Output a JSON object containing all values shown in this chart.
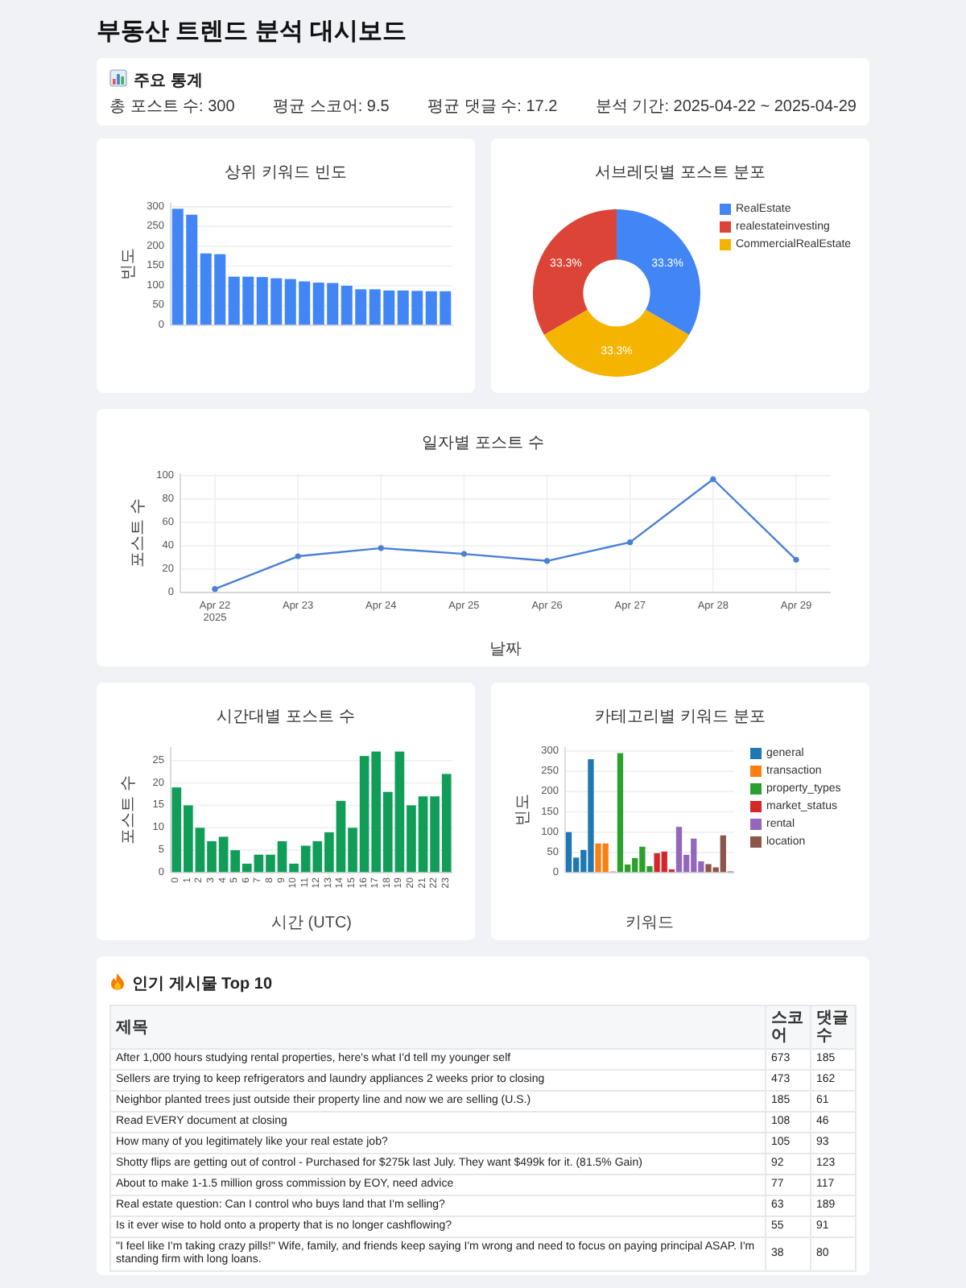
{
  "chart_data": [
    {
      "type": "other",
      "title": "부동산 트렌드 분석 대시보드"
    },
    {
      "type": "other",
      "title": "주요 통계",
      "annotations": [
        "총 포스트 수: 300",
        "평균 스코어: 9.5",
        "평균 댓글 수: 17.2",
        "분석 기간: 2025-04-22 ~ 2025-04-29"
      ]
    },
    {
      "type": "bar",
      "title": "상위 키워드 빈도",
      "ylabel": "빈도",
      "categories": [
        null,
        null,
        null,
        null,
        null,
        null,
        null,
        null,
        null,
        null,
        null,
        null,
        null,
        null,
        null,
        null,
        null,
        null,
        null,
        null
      ],
      "values": [
        295,
        280,
        182,
        180,
        123,
        123,
        122,
        119,
        117,
        111,
        108,
        107,
        100,
        91,
        91,
        88,
        88,
        87,
        86,
        86
      ],
      "color": "#4285f4",
      "ylim": [
        0,
        310
      ],
      "yticks": [
        0,
        50,
        100,
        150,
        200,
        250,
        300
      ],
      "grid": "y"
    },
    {
      "type": "donut",
      "title": "서브레딧별 포스트 분포",
      "categories": [
        "RealEstate",
        "realestateinvesting",
        "CommercialRealEstate"
      ],
      "values": [
        33.3,
        33.3,
        33.3
      ],
      "colors": [
        "#4285f4",
        "#db4437",
        "#f4b400"
      ],
      "value_labels": [
        "33.3%",
        "33.3%",
        "33.3%"
      ],
      "legend": "top right"
    },
    {
      "type": "line",
      "title": "일자별 포스트 수",
      "xlabel": "날짜",
      "ylabel": "포스트 수",
      "x": [
        "2025-04-22",
        "2025-04-23",
        "2025-04-24",
        "2025-04-25",
        "2025-04-26",
        "2025-04-27",
        "2025-04-28",
        "2025-04-29"
      ],
      "values": [
        3,
        31,
        38,
        33,
        27,
        43,
        97,
        28
      ],
      "color": "#4a7fd4",
      "xlim": [
        "2025-04-21T14:00",
        "2025-04-29T10:00"
      ],
      "xticks": [
        {
          "value": "2025-04-22",
          "label": "Apr 22\n2025"
        },
        {
          "value": "2025-04-23",
          "label": "Apr 23"
        },
        {
          "value": "2025-04-24",
          "label": "Apr 24"
        },
        {
          "value": "2025-04-25",
          "label": "Apr 25"
        },
        {
          "value": "2025-04-26",
          "label": "Apr 26"
        },
        {
          "value": "2025-04-27",
          "label": "Apr 27"
        },
        {
          "value": "2025-04-28",
          "label": "Apr 28"
        },
        {
          "value": "2025-04-29",
          "label": "Apr 29"
        }
      ],
      "ylim": [
        0,
        102
      ],
      "yticks": [
        0,
        20,
        40,
        60,
        80,
        100
      ],
      "grid": true,
      "marker": "circle"
    },
    {
      "type": "bar",
      "title": "시간대별 포스트 수",
      "xlabel": "시간 (UTC)",
      "ylabel": "포스트 수",
      "categories": [
        "0",
        "1",
        "2",
        "3",
        "4",
        "5",
        "6",
        "7",
        "8",
        "9",
        "10",
        "11",
        "12",
        "13",
        "14",
        "15",
        "16",
        "17",
        "18",
        "19",
        "20",
        "21",
        "22",
        "23"
      ],
      "values": [
        19,
        15,
        10,
        7,
        8,
        5,
        2,
        4,
        4,
        7,
        2,
        6,
        7,
        9,
        16,
        10,
        26,
        27,
        18,
        27,
        15,
        17,
        17,
        22
      ],
      "color": "#0f9d58",
      "ylim": [
        0,
        28
      ],
      "yticks": [
        0,
        5,
        10,
        15,
        20,
        25
      ],
      "grid": "y"
    },
    {
      "type": "bar",
      "title": "카테고리별 키워드 분포",
      "xlabel": "키워드",
      "ylabel": "빈도",
      "categories": [
        null,
        null,
        null,
        null,
        null,
        null,
        null,
        null,
        null,
        null,
        null,
        null,
        null,
        null,
        null,
        null,
        null,
        null,
        null,
        null,
        null,
        null,
        null
      ],
      "series": [
        {
          "name": "general",
          "color": "#1f77b4",
          "values": [
            100,
            37,
            56,
            280,
            null,
            null,
            null,
            null,
            null,
            null,
            null,
            null,
            null,
            null,
            null,
            null,
            null,
            null,
            null,
            null,
            null,
            null,
            null
          ]
        },
        {
          "name": "transaction",
          "color": "#ff7f0e",
          "values": [
            null,
            null,
            null,
            null,
            72,
            72,
            3,
            null,
            null,
            null,
            null,
            null,
            null,
            null,
            null,
            null,
            null,
            null,
            null,
            null,
            null,
            null,
            null
          ]
        },
        {
          "name": "property_types",
          "color": "#2ca02c",
          "values": [
            null,
            null,
            null,
            null,
            null,
            null,
            null,
            295,
            20,
            36,
            64,
            16,
            null,
            null,
            null,
            null,
            null,
            null,
            null,
            null,
            null,
            null,
            null
          ]
        },
        {
          "name": "market_status",
          "color": "#d62728",
          "values": [
            null,
            null,
            null,
            null,
            null,
            null,
            null,
            null,
            null,
            null,
            null,
            null,
            48,
            52,
            8,
            null,
            null,
            null,
            null,
            null,
            null,
            null,
            null
          ]
        },
        {
          "name": "rental",
          "color": "#9467bd",
          "values": [
            null,
            null,
            null,
            null,
            null,
            null,
            null,
            null,
            null,
            null,
            null,
            null,
            null,
            null,
            null,
            113,
            44,
            84,
            28,
            null,
            null,
            null,
            null
          ]
        },
        {
          "name": "location",
          "color": "#8c564b",
          "values": [
            null,
            null,
            null,
            null,
            null,
            null,
            null,
            null,
            null,
            null,
            null,
            null,
            null,
            null,
            null,
            null,
            null,
            null,
            null,
            21,
            13,
            92,
            3
          ]
        }
      ],
      "ylim": [
        0,
        310
      ],
      "yticks": [
        0,
        50,
        100,
        150,
        200,
        250,
        300
      ],
      "grid": "y",
      "legend": "top right"
    },
    {
      "type": "other",
      "title": "인기 게시물 Top 10",
      "xlabel": "제목",
      "categories": [
        "After 1,000 hours studying rental properties, here's what I'd tell my younger self",
        "Sellers are trying to keep refrigerators and laundry appliances 2 weeks prior to closing",
        "Neighbor planted trees just outside their property line and now we are selling (U.S.)",
        "Read EVERY document at closing",
        "How many of you legitimately like your real estate job?",
        "Shotty flips are getting out of control - Purchased for $275k last July. They want $499k for it.  (81.5% Gain)",
        "About to make 1-1.5 million gross commission by EOY, need advice",
        "Real estate question: Can I control who buys land that I'm selling?",
        "Is it ever wise to hold onto a property that is no longer cashflowing?",
        "\"I feel like I'm taking crazy pills!\" Wife, family, and friends keep saying I'm wrong and need to focus on paying principal ASAP. I'm standing firm with long loans."
      ],
      "series": [
        {
          "name": "스코어",
          "values": [
            673,
            473,
            185,
            108,
            105,
            92,
            77,
            63,
            55,
            38
          ]
        },
        {
          "name": "댓글 수",
          "values": [
            185,
            162,
            61,
            46,
            93,
            123,
            117,
            189,
            91,
            80
          ]
        }
      ],
      "data_labels": true
    }
  ]
}
